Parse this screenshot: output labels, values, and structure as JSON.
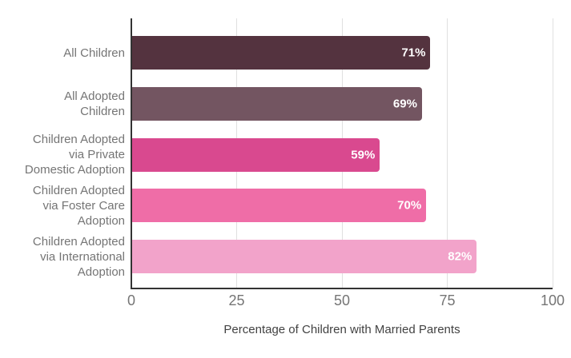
{
  "chart_data": {
    "type": "bar",
    "orientation": "horizontal",
    "title": "",
    "xlabel": "Percentage of Children with Married Parents",
    "ylabel": "",
    "categories": [
      "All Children",
      "All Adopted Children",
      "Children Adopted via Private Domestic Adoption",
      "Children Adopted via Foster Care Adoption",
      "Children Adopted via International Adoption"
    ],
    "category_label_lines": [
      [
        "All Children"
      ],
      [
        "All Adopted",
        "Children"
      ],
      [
        "Children Adopted",
        "via Private",
        "Domestic Adoption"
      ],
      [
        "Children Adopted",
        "via Foster Care",
        "Adoption"
      ],
      [
        "Children Adopted",
        "via International",
        "Adoption"
      ]
    ],
    "values": [
      71,
      69,
      59,
      70,
      82
    ],
    "value_labels": [
      "71%",
      "69%",
      "59%",
      "70%",
      "82%"
    ],
    "bar_colors": [
      "#54333F",
      "#735561",
      "#D9498F",
      "#EF6DA7",
      "#F2A3CA"
    ],
    "x_ticks": [
      0,
      25,
      50,
      75,
      100
    ],
    "xlim": [
      0,
      100
    ],
    "grid": "vertical-gridlines",
    "legend": "none",
    "colors": {
      "background": "#FFFFFF",
      "axis_line": "#333333",
      "gridline": "#E0E0E0",
      "category_label": "#757575",
      "tick_label": "#757575",
      "axis_title": "#424242",
      "value_label": "#FFFFFF"
    }
  }
}
